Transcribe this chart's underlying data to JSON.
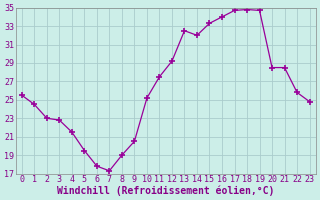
{
  "x": [
    0,
    1,
    2,
    3,
    4,
    5,
    6,
    7,
    8,
    9,
    10,
    11,
    12,
    13,
    14,
    15,
    16,
    17,
    18,
    19,
    20,
    21,
    22,
    23
  ],
  "y": [
    25.5,
    24.5,
    23.0,
    22.8,
    21.5,
    19.5,
    17.8,
    17.3,
    19.0,
    20.5,
    25.2,
    27.5,
    29.2,
    32.5,
    32.0,
    33.3,
    34.0,
    34.7,
    34.8,
    34.7,
    28.5,
    28.5,
    25.8,
    24.8
  ],
  "line_color": "#990099",
  "marker": "+",
  "marker_color": "#990099",
  "xlabel": "Windchill (Refroidissement éolien,°C)",
  "ylim": [
    17,
    35
  ],
  "xlim": [
    -0.5,
    23.5
  ],
  "yticks": [
    17,
    19,
    21,
    23,
    25,
    27,
    29,
    31,
    33,
    35
  ],
  "xticks": [
    0,
    1,
    2,
    3,
    4,
    5,
    6,
    7,
    8,
    9,
    10,
    11,
    12,
    13,
    14,
    15,
    16,
    17,
    18,
    19,
    20,
    21,
    22,
    23
  ],
  "bg_color": "#cceee8",
  "grid_color": "#aacccc",
  "tick_label_color": "#880088",
  "xlabel_color": "#880088",
  "xlabel_fontsize": 7,
  "tick_fontsize": 6,
  "marker_size": 5,
  "linewidth": 0.9
}
